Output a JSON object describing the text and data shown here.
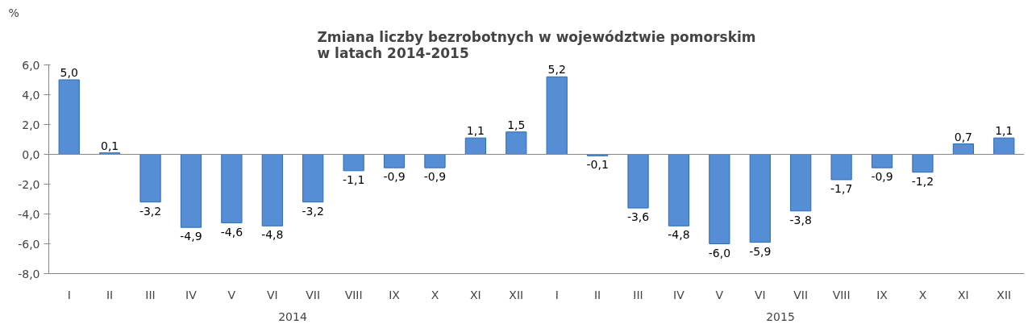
{
  "chart_data": {
    "type": "bar",
    "title": "Zmiana liczby bezrobotnych w województwie pomorskim\nw latach 2014-2015",
    "ylabel": "%",
    "categories": [
      "I",
      "II",
      "III",
      "IV",
      "V",
      "VI",
      "VII",
      "VIII",
      "IX",
      "X",
      "XI",
      "XII",
      "I",
      "II",
      "III",
      "IV",
      "V",
      "VI",
      "VII",
      "VIII",
      "IX",
      "X",
      "XI",
      "XII"
    ],
    "values": [
      5.0,
      0.1,
      -3.2,
      -4.9,
      -4.6,
      -4.8,
      -3.2,
      -1.1,
      -0.9,
      -0.9,
      1.1,
      1.5,
      5.2,
      -0.1,
      -3.6,
      -4.8,
      -6.0,
      -5.9,
      -3.8,
      -1.7,
      -0.9,
      -1.2,
      0.7,
      1.1
    ],
    "value_labels": [
      "5,0",
      "0,1",
      "-3,2",
      "-4,9",
      "-4,6",
      "-4,8",
      "-3,2",
      "-1,1",
      "-0,9",
      "-0,9",
      "1,1",
      "1,5",
      "5,2",
      "-0,1",
      "-3,6",
      "-4,8",
      "-6,0",
      "-5,9",
      "-3,8",
      "-1,7",
      "-0,9",
      "-1,2",
      "0,7",
      "1,1"
    ],
    "color": "#558ed5",
    "ylim": [
      -8,
      6
    ],
    "yticks": [
      {
        "value": -8,
        "label": "-8,0"
      },
      {
        "value": -6,
        "label": "-6,0"
      },
      {
        "value": -4,
        "label": "-4,0"
      },
      {
        "value": -2,
        "label": "-2,0"
      },
      {
        "value": 0,
        "label": "0,0"
      },
      {
        "value": 2,
        "label": "2,0"
      },
      {
        "value": 4,
        "label": "4,0"
      },
      {
        "value": 6,
        "label": "6,0"
      }
    ],
    "annotations": [
      "2014",
      "2015"
    ]
  }
}
